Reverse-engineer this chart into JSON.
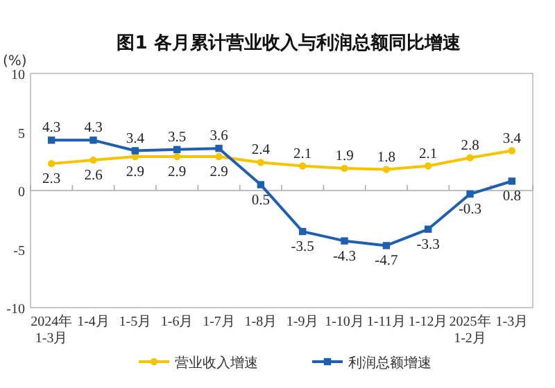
{
  "chart_data": {
    "type": "line",
    "title": "图1  各月累计营业收入与利润总额同比增速",
    "ylabel": "(%)",
    "categories": [
      "2024年\n1-3月",
      "1-4月",
      "1-5月",
      "1-6月",
      "1-7月",
      "1-8月",
      "1-9月",
      "1-10月",
      "1-11月",
      "1-12月",
      "2025年\n1-2月",
      "1-3月"
    ],
    "series": [
      {
        "name": "营业收入增速",
        "color": "#f5c400",
        "marker": "circle",
        "values": [
          2.3,
          2.6,
          2.9,
          2.9,
          2.9,
          2.4,
          2.1,
          1.9,
          1.8,
          2.1,
          2.8,
          3.4
        ]
      },
      {
        "name": "利润总额增速",
        "color": "#1f5fb0",
        "marker": "square",
        "values": [
          4.3,
          4.3,
          3.4,
          3.5,
          3.6,
          0.5,
          -3.5,
          -4.3,
          -4.7,
          -3.3,
          -0.3,
          0.8
        ]
      }
    ],
    "ylim": [
      -10,
      10
    ],
    "yticks": [
      -10,
      -5,
      0,
      5,
      10
    ],
    "legend": "bottom",
    "data_labels": true
  }
}
